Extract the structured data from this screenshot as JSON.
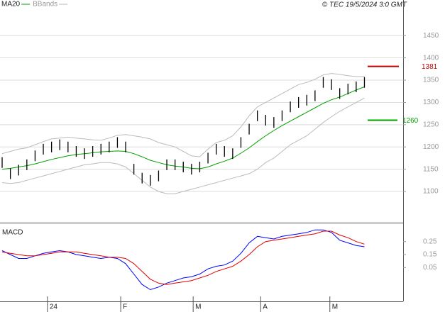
{
  "chart_data": [
    {
      "type": "range-bar",
      "source": "© TEC 19/5/2024 3:0 GMT",
      "x": [
        0,
        1,
        2,
        3,
        4,
        5,
        6,
        7,
        8,
        9,
        10,
        11,
        12,
        13,
        14,
        15,
        16,
        17,
        18,
        19,
        20,
        21,
        22,
        23,
        24,
        25,
        26,
        27,
        28,
        29,
        30,
        31,
        32,
        33,
        34,
        35,
        36,
        37,
        38,
        39,
        40,
        41,
        42,
        43,
        44
      ],
      "xlim": [
        -0.26,
        48.7
      ],
      "ylim": [
        1030,
        1530
      ],
      "yticks": [
        1100,
        1150,
        1200,
        1250,
        1300,
        1350,
        1400,
        1450
      ],
      "grid": true,
      "ranges": {
        "color": "#000000",
        "high": [
          1177,
          1152,
          1160,
          1172,
          1192,
          1207,
          1212,
          1217,
          1212,
          1202,
          1197,
          1202,
          1207,
          1212,
          1222,
          1212,
          1162,
          1142,
          1137,
          1147,
          1172,
          1172,
          1167,
          1162,
          1167,
          1187,
          1207,
          1202,
          1197,
          1222,
          1252,
          1282,
          1272,
          1267,
          1282,
          1302,
          1312,
          1317,
          1327,
          1357,
          1352,
          1332,
          1342,
          1347,
          1357
        ],
        "low": [
          1153,
          1128,
          1136,
          1148,
          1168,
          1183,
          1188,
          1193,
          1188,
          1178,
          1173,
          1178,
          1183,
          1188,
          1198,
          1188,
          1138,
          1118,
          1113,
          1123,
          1148,
          1148,
          1143,
          1138,
          1143,
          1163,
          1183,
          1178,
          1173,
          1198,
          1228,
          1258,
          1248,
          1243,
          1258,
          1278,
          1288,
          1293,
          1303,
          1333,
          1328,
          1308,
          1318,
          1323,
          1333
        ]
      },
      "series": [
        {
          "name": "MA20",
          "color": "#00a000",
          "values": [
            1150,
            1152,
            1155,
            1158,
            1162,
            1167,
            1172,
            1176,
            1180,
            1183,
            1185,
            1187,
            1189,
            1190,
            1191,
            1190,
            1185,
            1178,
            1170,
            1165,
            1160,
            1157,
            1155,
            1152,
            1151,
            1155,
            1162,
            1168,
            1175,
            1186,
            1198,
            1212,
            1225,
            1237,
            1248,
            1258,
            1268,
            1278,
            1288,
            1298,
            1306,
            1312,
            1320,
            1328,
            1335
          ]
        }
      ],
      "bands": {
        "name": "BBands",
        "color": "#bbbbbb",
        "upper": [
          1185,
          1190,
          1195,
          1198,
          1205,
          1212,
          1218,
          1220,
          1222,
          1220,
          1218,
          1216,
          1215,
          1220,
          1226,
          1228,
          1225,
          1222,
          1218,
          1210,
          1205,
          1200,
          1190,
          1180,
          1178,
          1195,
          1210,
          1215,
          1225,
          1245,
          1270,
          1290,
          1300,
          1310,
          1320,
          1330,
          1340,
          1345,
          1352,
          1362,
          1365,
          1363,
          1360,
          1358,
          1358
        ],
        "lower": [
          1120,
          1118,
          1120,
          1125,
          1130,
          1135,
          1140,
          1145,
          1150,
          1155,
          1160,
          1162,
          1165,
          1165,
          1162,
          1155,
          1140,
          1125,
          1110,
          1100,
          1095,
          1095,
          1100,
          1105,
          1110,
          1115,
          1120,
          1125,
          1130,
          1135,
          1140,
          1150,
          1165,
          1175,
          1190,
          1205,
          1215,
          1225,
          1240,
          1255,
          1268,
          1280,
          1290,
          1300,
          1310
        ]
      },
      "levels": [
        {
          "value": 1381,
          "color": "#c00000"
        },
        {
          "value": 1260,
          "color": "#00a000"
        }
      ]
    },
    {
      "type": "line",
      "title": "MACD",
      "x": [
        0,
        1,
        2,
        3,
        4,
        5,
        6,
        7,
        8,
        9,
        10,
        11,
        12,
        13,
        14,
        15,
        16,
        17,
        18,
        19,
        20,
        21,
        22,
        23,
        24,
        25,
        26,
        27,
        28,
        29,
        30,
        31,
        32,
        33,
        34,
        35,
        36,
        37,
        38,
        39,
        40,
        41,
        42,
        43,
        44
      ],
      "xlim": [
        -0.26,
        48.7
      ],
      "ylim": [
        -0.21,
        0.39
      ],
      "yticks": [
        0.05,
        0.15,
        0.25
      ],
      "xticks": [
        {
          "value": 5.5,
          "label": "24"
        },
        {
          "value": 14.4,
          "label": "F"
        },
        {
          "value": 23.2,
          "label": "M"
        },
        {
          "value": 31.4,
          "label": "A"
        },
        {
          "value": 39.8,
          "label": "M"
        }
      ],
      "series": [
        {
          "color": "#0000ff",
          "values": [
            0.18,
            0.15,
            0.12,
            0.12,
            0.14,
            0.16,
            0.17,
            0.18,
            0.17,
            0.15,
            0.14,
            0.13,
            0.12,
            0.13,
            0.12,
            0.08,
            0.0,
            -0.08,
            -0.12,
            -0.1,
            -0.07,
            -0.05,
            -0.03,
            -0.02,
            0.0,
            0.04,
            0.06,
            0.07,
            0.1,
            0.16,
            0.24,
            0.29,
            0.28,
            0.27,
            0.29,
            0.3,
            0.31,
            0.32,
            0.34,
            0.34,
            0.32,
            0.26,
            0.24,
            0.22,
            0.21
          ]
        },
        {
          "color": "#e00000",
          "values": [
            0.17,
            0.16,
            0.15,
            0.14,
            0.14,
            0.15,
            0.16,
            0.17,
            0.17,
            0.17,
            0.16,
            0.15,
            0.14,
            0.13,
            0.13,
            0.12,
            0.08,
            0.02,
            -0.04,
            -0.07,
            -0.08,
            -0.07,
            -0.06,
            -0.05,
            -0.03,
            -0.01,
            0.02,
            0.04,
            0.06,
            0.1,
            0.15,
            0.21,
            0.25,
            0.26,
            0.27,
            0.28,
            0.29,
            0.3,
            0.31,
            0.33,
            0.33,
            0.3,
            0.28,
            0.25,
            0.23
          ]
        }
      ]
    }
  ]
}
